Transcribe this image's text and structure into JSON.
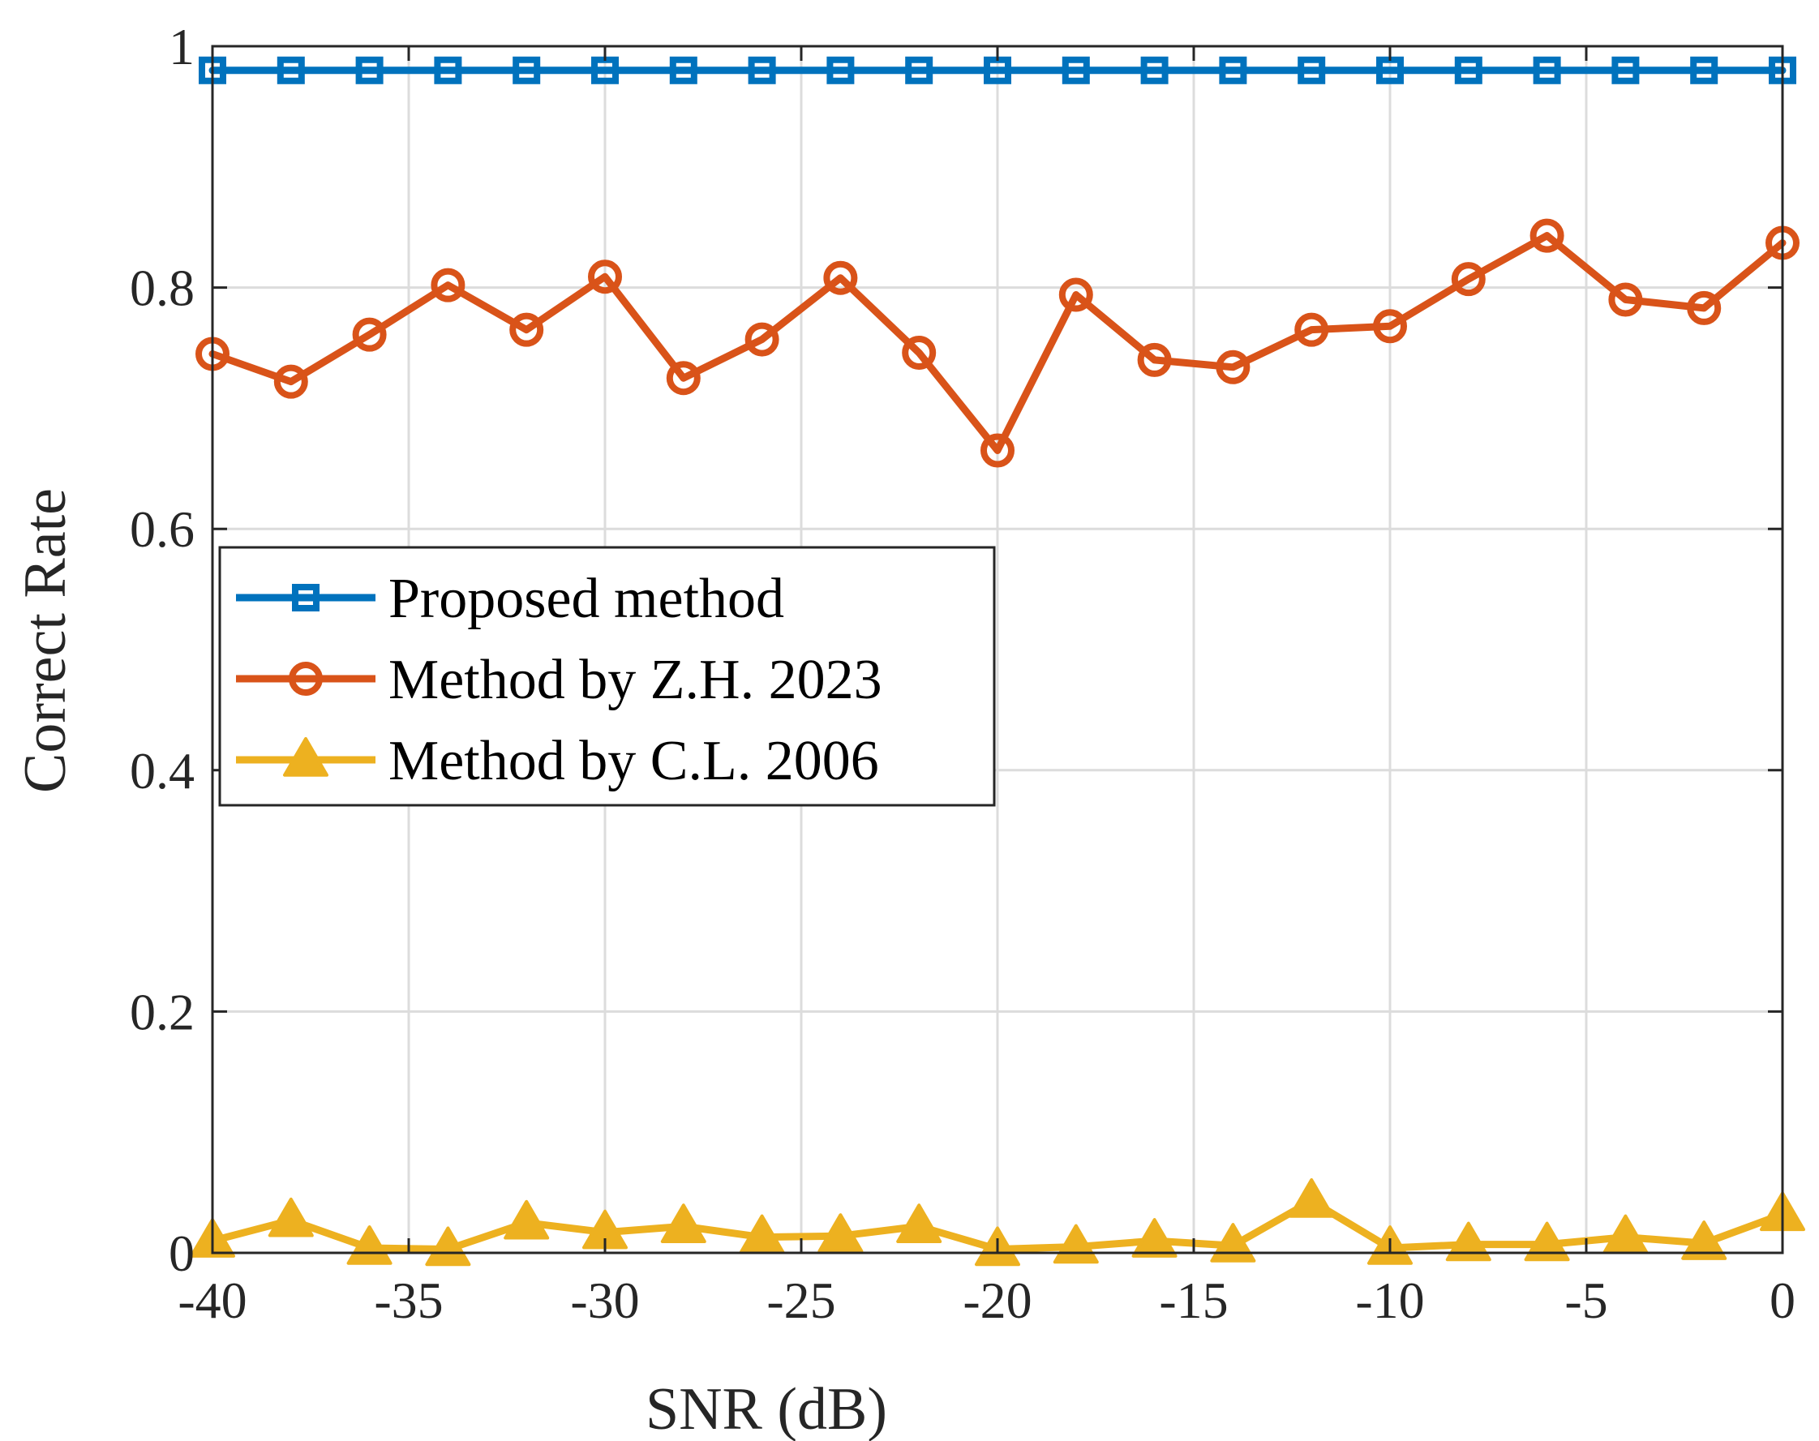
{
  "chart_data": {
    "type": "line",
    "title": "",
    "xlabel": "SNR (dB)",
    "ylabel": "Correct Rate",
    "xlim": [
      -40,
      0
    ],
    "ylim": [
      0,
      1
    ],
    "xticks": [
      -40,
      -35,
      -30,
      -25,
      -20,
      -15,
      -10,
      -5,
      0
    ],
    "xtick_labels": [
      "-40",
      "-35",
      "-30",
      "-25",
      "-20",
      "-15",
      "-10",
      "-5",
      "0"
    ],
    "yticks": [
      0,
      0.2,
      0.4,
      0.6,
      0.8,
      1
    ],
    "ytick_labels": [
      "0",
      "0.2",
      "0.4",
      "0.6",
      "0.8",
      "1"
    ],
    "grid": true,
    "legend_position": "center-left",
    "x": [
      -40,
      -38,
      -36,
      -34,
      -32,
      -30,
      -28,
      -26,
      -24,
      -22,
      -20,
      -18,
      -16,
      -14,
      -12,
      -10,
      -8,
      -6,
      -4,
      -2,
      0
    ],
    "series": [
      {
        "name": "Proposed method",
        "color": "#0072BD",
        "marker": "square",
        "values": [
          0.98,
          0.98,
          0.98,
          0.98,
          0.98,
          0.98,
          0.98,
          0.98,
          0.98,
          0.98,
          0.98,
          0.98,
          0.98,
          0.98,
          0.98,
          0.98,
          0.98,
          0.98,
          0.98,
          0.98,
          0.98
        ]
      },
      {
        "name": "Method by Z.H. 2023",
        "color": "#D95319",
        "marker": "circle",
        "values": [
          0.745,
          0.722,
          0.761,
          0.802,
          0.765,
          0.809,
          0.725,
          0.757,
          0.808,
          0.746,
          0.665,
          0.794,
          0.74,
          0.734,
          0.765,
          0.768,
          0.807,
          0.843,
          0.79,
          0.783,
          0.837
        ]
      },
      {
        "name": "Method by C.L. 2006",
        "color": "#EDB120",
        "marker": "triangle",
        "values": [
          0.01,
          0.027,
          0.004,
          0.003,
          0.025,
          0.017,
          0.022,
          0.013,
          0.014,
          0.022,
          0.003,
          0.005,
          0.01,
          0.006,
          0.043,
          0.004,
          0.007,
          0.007,
          0.013,
          0.008,
          0.032
        ]
      }
    ]
  }
}
